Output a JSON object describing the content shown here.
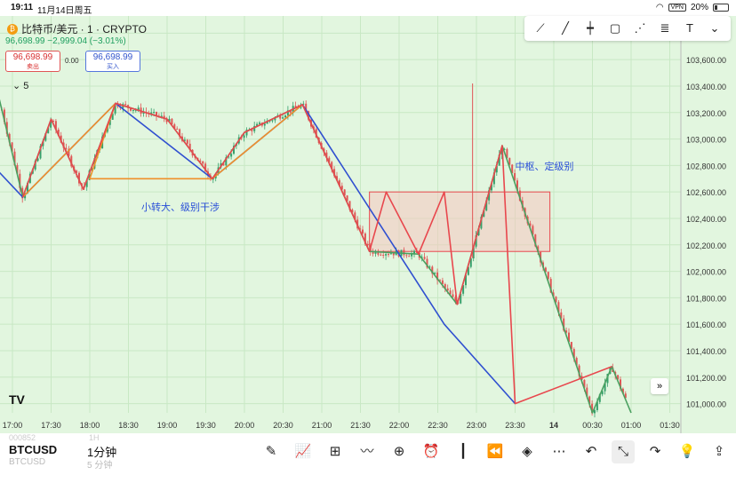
{
  "status_bar": {
    "time": "19:11",
    "date": "11月14日周五",
    "battery": "20%",
    "vpn": "VPN"
  },
  "header": {
    "symbol_line": "比特币/美元 · 1 · CRYPTO",
    "change_line": "96,698.99 −2,999.04 (−3.01%)",
    "coin_icon": "bitcoin-icon"
  },
  "trade": {
    "sell_price": "96,698.99",
    "sell_label": "卖出",
    "buy_price": "96,698.99",
    "buy_label": "买入",
    "spread": "0.00"
  },
  "indicator_toggle": {
    "count": "5"
  },
  "drawing_tools": [
    "multi-point-line-icon",
    "trend-line-icon",
    "vertical-line-icon",
    "rectangle-icon",
    "zigzag-pattern-icon",
    "fib-retracement-icon",
    "text-tool-icon",
    "dropdown-icon"
  ],
  "bottom": {
    "symbol": "BTCUSD",
    "symbol_ghost": "BTCUSD",
    "ghost_top_left": "000852",
    "ghost_top_right": "1H",
    "interval": "1分钟",
    "interval_ghost": "5 分钟",
    "icons": [
      "pen-icon",
      "indicators-icon",
      "grid-icon",
      "chart-type-icon",
      "add-icon",
      "alarm-icon",
      "candles-icon",
      "replay-icon",
      "layers-icon",
      "more-icon",
      "undo-icon",
      "collapse-icon",
      "redo-icon",
      "idea-icon",
      "share-icon"
    ]
  },
  "colors": {
    "background": "#e2f6df",
    "up": "#37a06b",
    "down": "#e05555",
    "blue_line": "#3050d0",
    "orange_line": "#f0902a",
    "red_line": "#e8474d",
    "green_line": "#4aa060",
    "box_fill": "#f5c7c0"
  },
  "chart_data": {
    "type": "line",
    "title": "",
    "y_axis": {
      "ticks": [
        101000,
        101200,
        101400,
        101600,
        101800,
        102000,
        102200,
        102400,
        102600,
        102800,
        103000,
        103200,
        103400,
        103600,
        103800
      ],
      "tick_labels": [
        "101,000.00",
        "101,200.00",
        "101,400.00",
        "101,600.00",
        "101,800.00",
        "102,000.00",
        "102,200.00",
        "102,400.00",
        "102,600.00",
        "102,800.00",
        "103,000.00",
        "103,200.00",
        "103,400.00",
        "103,600.00",
        "103,800.00"
      ],
      "range": [
        100930,
        103930
      ]
    },
    "x_axis": {
      "ticks": [
        "17:00",
        "17:30",
        "18:00",
        "18:30",
        "19:00",
        "19:30",
        "20:00",
        "20:30",
        "21:00",
        "21:30",
        "22:00",
        "22:30",
        "23:00",
        "23:30",
        "14",
        "00:30",
        "01:00",
        "01:30"
      ]
    },
    "annotations": [
      {
        "text": "小转大、级别干涉",
        "time": "18:40",
        "price": 102460
      },
      {
        "text": "中枢、定级别",
        "time": "23:30",
        "price": 102770
      }
    ],
    "zone": {
      "time_start": "21:37",
      "time_end": "23:57",
      "price_top": 102600,
      "price_bottom": 102150
    },
    "series": [
      {
        "style": "blue",
        "points": [
          [
            "16:40",
            102850
          ],
          [
            "17:08",
            102560
          ],
          [
            "18:20",
            103270
          ],
          [
            "19:35",
            102700
          ],
          [
            "20:45",
            103260
          ],
          [
            "22:35",
            101600
          ],
          [
            "23:30",
            101000
          ]
        ]
      },
      {
        "style": "orange",
        "points": [
          [
            "17:08",
            102560
          ],
          [
            "18:20",
            103270
          ],
          [
            "18:00",
            102700
          ],
          [
            "19:35",
            102700
          ],
          [
            "20:45",
            103260
          ]
        ]
      },
      {
        "style": "red",
        "points": [
          [
            "17:08",
            102560
          ],
          [
            "17:30",
            103150
          ],
          [
            "17:55",
            102620
          ],
          [
            "18:20",
            103270
          ],
          [
            "19:00",
            103150
          ],
          [
            "19:35",
            102700
          ],
          [
            "20:00",
            103050
          ],
          [
            "20:45",
            103260
          ],
          [
            "21:37",
            102150
          ],
          [
            "21:50",
            102600
          ],
          [
            "22:15",
            102130
          ],
          [
            "22:35",
            102600
          ],
          [
            "22:45",
            101750
          ],
          [
            "23:20",
            102950
          ],
          [
            "23:30",
            101000
          ],
          [
            "00:45",
            101280
          ]
        ]
      },
      {
        "style": "green",
        "points": [
          [
            "16:40",
            103700
          ],
          [
            "17:08",
            102560
          ],
          [
            "17:30",
            103150
          ],
          [
            "17:55",
            102620
          ],
          [
            "18:20",
            103270
          ],
          [
            "19:00",
            103150
          ],
          [
            "19:35",
            102700
          ],
          [
            "20:00",
            103050
          ],
          [
            "20:45",
            103260
          ],
          [
            "21:37",
            102150
          ],
          [
            "22:15",
            102130
          ],
          [
            "22:45",
            101750
          ],
          [
            "23:20",
            102950
          ],
          [
            "00:30",
            100930
          ],
          [
            "00:45",
            101280
          ],
          [
            "01:00",
            100930
          ]
        ]
      }
    ]
  }
}
